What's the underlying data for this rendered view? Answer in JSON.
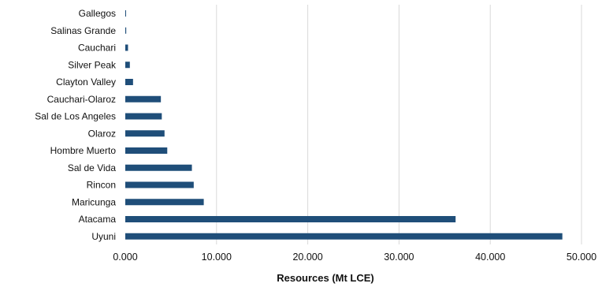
{
  "chart_data": {
    "type": "bar",
    "orientation": "horizontal",
    "categories": [
      "Gallegos",
      "Salinas Grande",
      "Cauchari",
      "Silver Peak",
      "Clayton Valley",
      "Cauchari-Olaroz",
      "Sal de Los Angeles",
      "Olaroz",
      "Hombre Muerto",
      "Sal de Vida",
      "Rincon",
      "Maricunga",
      "Atacama",
      "Uyuni"
    ],
    "values": [
      0.01,
      0.1,
      0.3,
      0.5,
      0.85,
      3.9,
      4.0,
      4.3,
      4.6,
      7.3,
      7.5,
      8.6,
      36.2,
      47.9
    ],
    "xlabel": "Resources (Mt LCE)",
    "ylabel": "",
    "xlim": [
      0,
      50
    ],
    "xticks": [
      0,
      10,
      20,
      30,
      40,
      50
    ],
    "xtick_labels": [
      "0.000",
      "10.000",
      "20.000",
      "30.000",
      "40.000",
      "50.000"
    ],
    "grid": "vertical",
    "bar_color": "#1f4e79"
  }
}
